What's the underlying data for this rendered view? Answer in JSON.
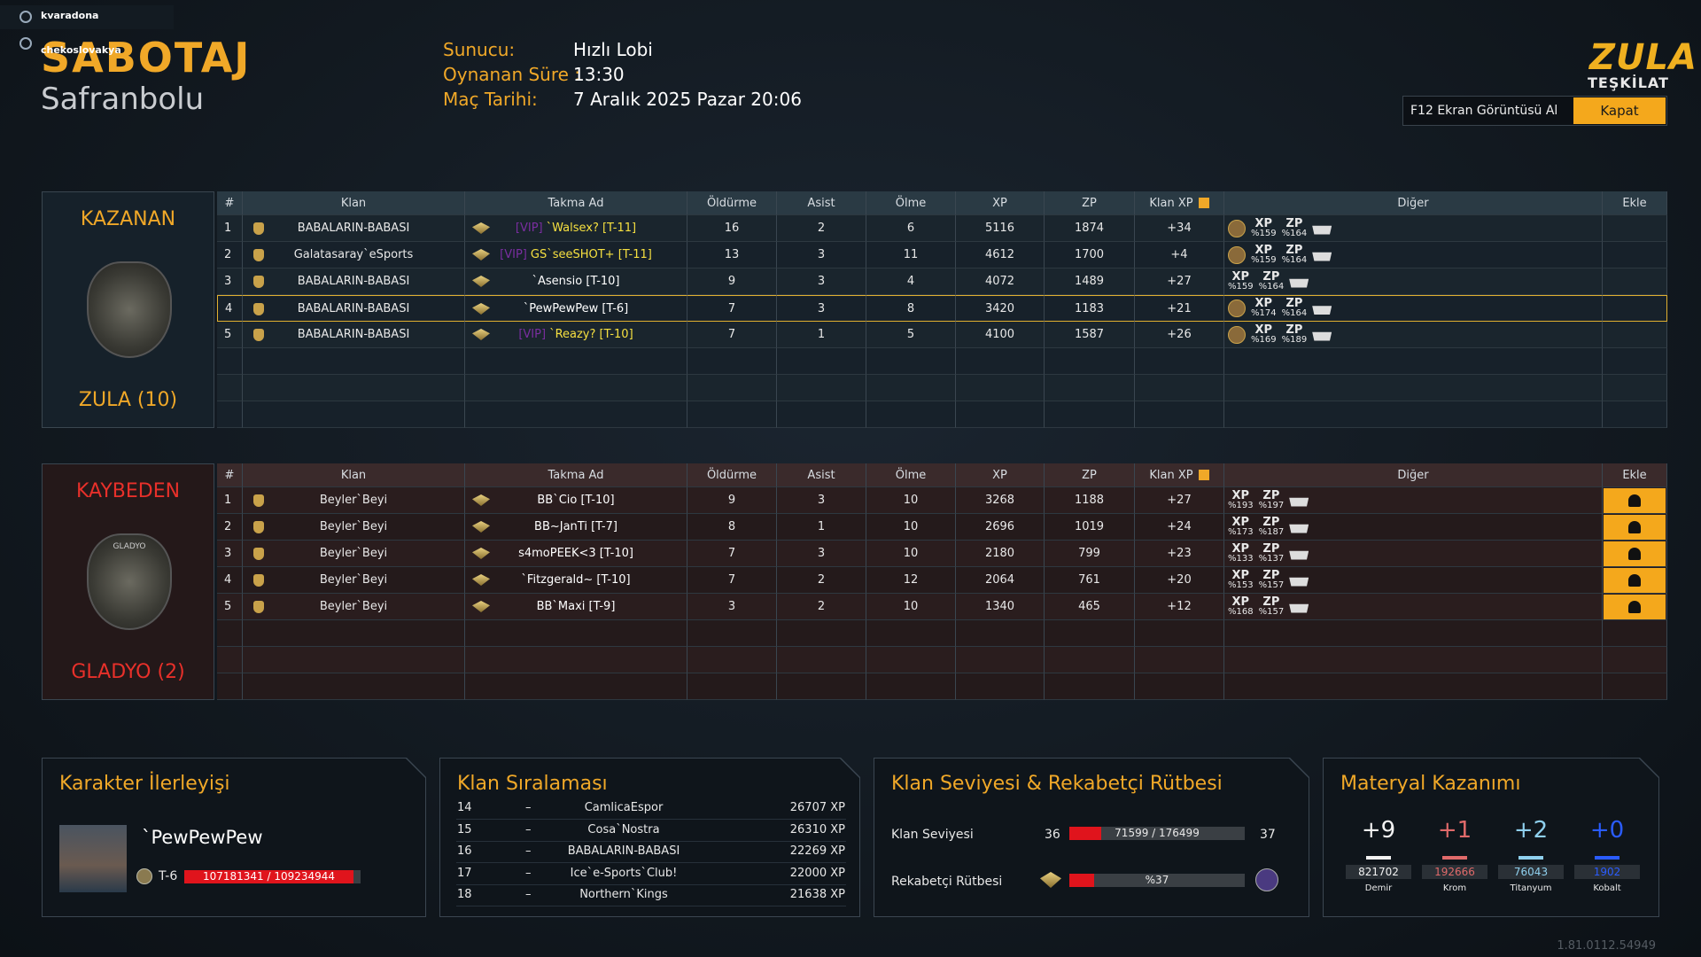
{
  "voice": [
    "kvaradona",
    "chekoslovakya"
  ],
  "header": {
    "mode": "SABOTAJ",
    "map": "Safranbolu",
    "info": [
      {
        "label": "Sunucu:",
        "value": "Hızlı Lobi"
      },
      {
        "label": "Oynanan Süre :",
        "value": "13:30"
      },
      {
        "label": "Maç Tarihi:",
        "value": "7 Aralık 2025 Pazar 20:06"
      }
    ]
  },
  "logo": [
    "ZULA",
    "TEŞKİLAT"
  ],
  "buttons": [
    "F12 Ekran Görüntüsü Al",
    "Kapat"
  ],
  "columns": [
    "#",
    "Klan",
    "Takma Ad",
    "Öldürme",
    "Asist",
    "Ölme",
    "XP",
    "ZP",
    "Klan XP",
    "Diğer",
    "Ekle"
  ],
  "other_labels": [
    "XP",
    "ZP"
  ],
  "teams": [
    {
      "result": "KAZANAN",
      "name": "ZULA (10)",
      "rows": [
        {
          "no": 1,
          "clan": "BABALARIN-BABASI",
          "vip": "[VIP]",
          "nick": "`Walsex? [T-11]",
          "kills": 16,
          "assists": 2,
          "deaths": 6,
          "xp": 5116,
          "zp": 1874,
          "clan_xp": "+34",
          "xp_bonus": "%159",
          "zp_bonus": "%164"
        },
        {
          "no": 2,
          "clan": "Galatasaray`eSports",
          "vip": "[VIP]",
          "nick": "GS`seeSHOT+ [T-11]",
          "kills": 13,
          "assists": 3,
          "deaths": 11,
          "xp": 4612,
          "zp": 1700,
          "clan_xp": "+4",
          "xp_bonus": "%159",
          "zp_bonus": "%164"
        },
        {
          "no": 3,
          "clan": "BABALARIN-BABASI",
          "nick": "`Asensio [T-10]",
          "kills": 9,
          "assists": 3,
          "deaths": 4,
          "xp": 4072,
          "zp": 1489,
          "clan_xp": "+27",
          "xp_bonus": "%159",
          "zp_bonus": "%164"
        },
        {
          "no": 4,
          "clan": "BABALARIN-BABASI",
          "nick": "`PewPewPew [T-6]",
          "kills": 7,
          "assists": 3,
          "deaths": 8,
          "xp": 3420,
          "zp": 1183,
          "clan_xp": "+21",
          "xp_bonus": "%174",
          "zp_bonus": "%164",
          "selected": true
        },
        {
          "no": 5,
          "clan": "BABALARIN-BABASI",
          "vip": "[VIP]",
          "nick": "`Reazy? [T-10]",
          "kills": 7,
          "assists": 1,
          "deaths": 5,
          "xp": 4100,
          "zp": 1587,
          "clan_xp": "+26",
          "xp_bonus": "%169",
          "zp_bonus": "%189"
        }
      ]
    },
    {
      "result": "KAYBEDEN",
      "name": "GLADYO (2)",
      "badge": "GLADYO",
      "rows": [
        {
          "no": 1,
          "clan": "Beyler`Beyi",
          "nick": "BB`Cio [T-10]",
          "kills": 9,
          "assists": 3,
          "deaths": 10,
          "xp": 3268,
          "zp": 1188,
          "clan_xp": "+27",
          "xp_bonus": "%193",
          "zp_bonus": "%197"
        },
        {
          "no": 2,
          "clan": "Beyler`Beyi",
          "nick": "BB~JanTi [T-7]",
          "kills": 8,
          "assists": 1,
          "deaths": 10,
          "xp": 2696,
          "zp": 1019,
          "clan_xp": "+24",
          "xp_bonus": "%173",
          "zp_bonus": "%187"
        },
        {
          "no": 3,
          "clan": "Beyler`Beyi",
          "nick": "s4moPEEK<3 [T-10]",
          "kills": 7,
          "assists": 3,
          "deaths": 10,
          "xp": 2180,
          "zp": 799,
          "clan_xp": "+23",
          "xp_bonus": "%133",
          "zp_bonus": "%137"
        },
        {
          "no": 4,
          "clan": "Beyler`Beyi",
          "nick": "`Fitzgerald~ [T-10]",
          "kills": 7,
          "assists": 2,
          "deaths": 12,
          "xp": 2064,
          "zp": 761,
          "clan_xp": "+20",
          "xp_bonus": "%153",
          "zp_bonus": "%157"
        },
        {
          "no": 5,
          "clan": "Beyler`Beyi",
          "nick": "BB`Maxi [T-9]",
          "kills": 3,
          "assists": 2,
          "deaths": 10,
          "xp": 1340,
          "zp": 465,
          "clan_xp": "+12",
          "xp_bonus": "%168",
          "zp_bonus": "%157"
        }
      ]
    }
  ],
  "character": {
    "title": "Karakter İlerleyişi",
    "name": "`PewPewPew",
    "rank": "T-6",
    "progress": "107181341 / 109234944"
  },
  "clan_ranking": {
    "title": "Klan Sıralaması",
    "rows": [
      [
        "14",
        "–",
        "CamlicaEspor",
        "26707 XP"
      ],
      [
        "15",
        "–",
        "Cosa`Nostra",
        "26310 XP"
      ],
      [
        "16",
        "–",
        "BABALARIN-BABASI",
        "22269 XP"
      ],
      [
        "17",
        "–",
        "Ice`e-Sports`Club!",
        "22000 XP"
      ],
      [
        "18",
        "–",
        "Northern`Kings",
        "21638 XP"
      ]
    ]
  },
  "clan_level": {
    "title": "Klan Seviyesi & Rekabetçi Rütbesi",
    "level_label": "Klan Seviyesi",
    "level": 36,
    "progress": "71599 / 176499",
    "next_level": 37,
    "rank_label": "Rekabetçi Rütbesi",
    "rank_progress": "%37"
  },
  "materials": {
    "title": "Materyal Kazanımı",
    "items": [
      {
        "gain": "+9",
        "total": 821702,
        "name": "Demir",
        "color": "#f2f2f2"
      },
      {
        "gain": "+1",
        "total": 192666,
        "name": "Krom",
        "color": "#e06a6a"
      },
      {
        "gain": "+2",
        "total": 76043,
        "name": "Titanyum",
        "color": "#8fd0ee"
      },
      {
        "gain": "+0",
        "total": 1902,
        "name": "Kobalt",
        "color": "#2a5cff"
      }
    ]
  },
  "version": "1.81.0112.54949"
}
